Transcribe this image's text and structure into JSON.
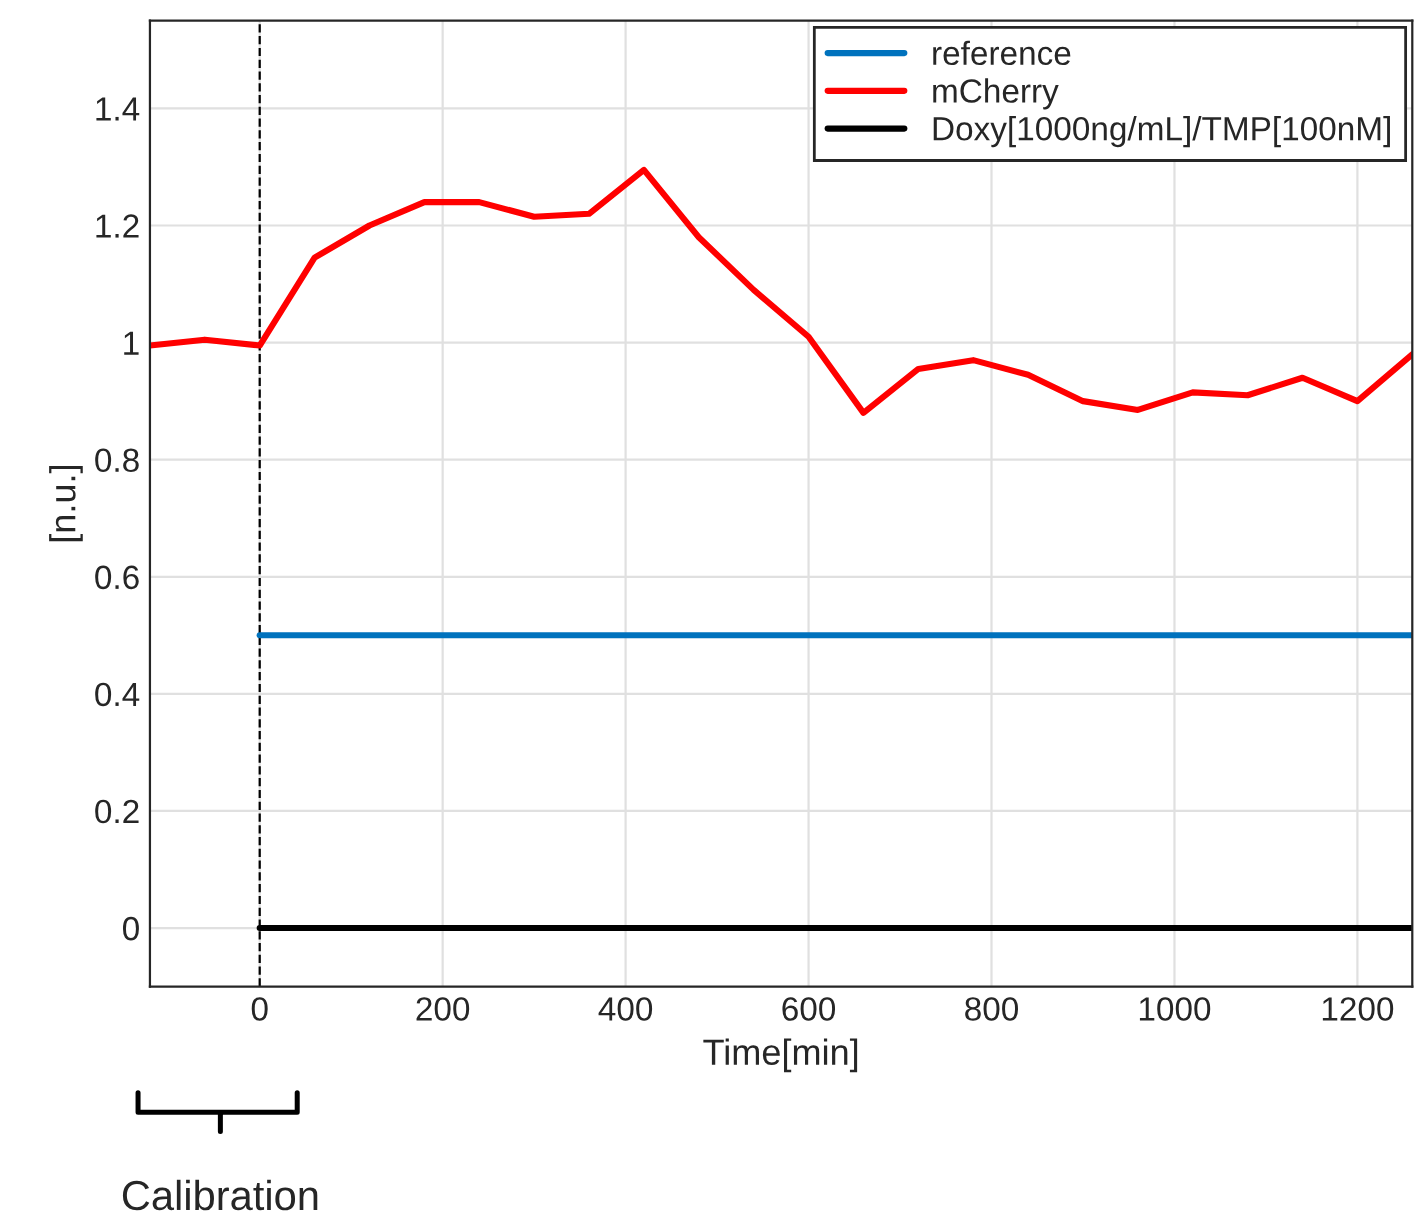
{
  "chart_data": {
    "type": "line",
    "xlabel": "Time[min]",
    "ylabel": "[n.u.]",
    "xlim": [
      -120,
      1260
    ],
    "ylim": [
      -0.1,
      1.55
    ],
    "xticks": [
      0,
      200,
      400,
      600,
      800,
      1000,
      1200
    ],
    "yticks": [
      0,
      0.2,
      0.4,
      0.6,
      0.8,
      1,
      1.2,
      1.4
    ],
    "grid": true,
    "legend": "top right",
    "series": [
      {
        "name": "reference",
        "color": "#0072bd",
        "x": [
          0,
          1260
        ],
        "values": [
          0.5,
          0.5
        ]
      },
      {
        "name": "mCherry",
        "color": "#ff0000",
        "x": [
          -120,
          -60,
          0,
          60,
          120,
          180,
          240,
          300,
          360,
          420,
          480,
          540,
          600,
          660,
          720,
          780,
          840,
          900,
          960,
          1020,
          1080,
          1140,
          1200,
          1260
        ],
        "values": [
          0.995,
          1.005,
          0.995,
          1.145,
          1.2,
          1.24,
          1.24,
          1.215,
          1.22,
          1.295,
          1.18,
          1.09,
          1.01,
          0.88,
          0.955,
          0.97,
          0.945,
          0.9,
          0.885,
          0.915,
          0.91,
          0.94,
          0.9,
          0.98
        ]
      },
      {
        "name": "Doxy[1000ng/mL]/TMP[100nM]",
        "color": "#000000",
        "x": [
          0,
          1260
        ],
        "values": [
          0,
          0
        ]
      }
    ],
    "ref_lines": [
      {
        "axis": "x",
        "value": 0,
        "color": "#000000",
        "line_style": "dashed"
      }
    ],
    "annotations": [
      "Calibration"
    ]
  }
}
